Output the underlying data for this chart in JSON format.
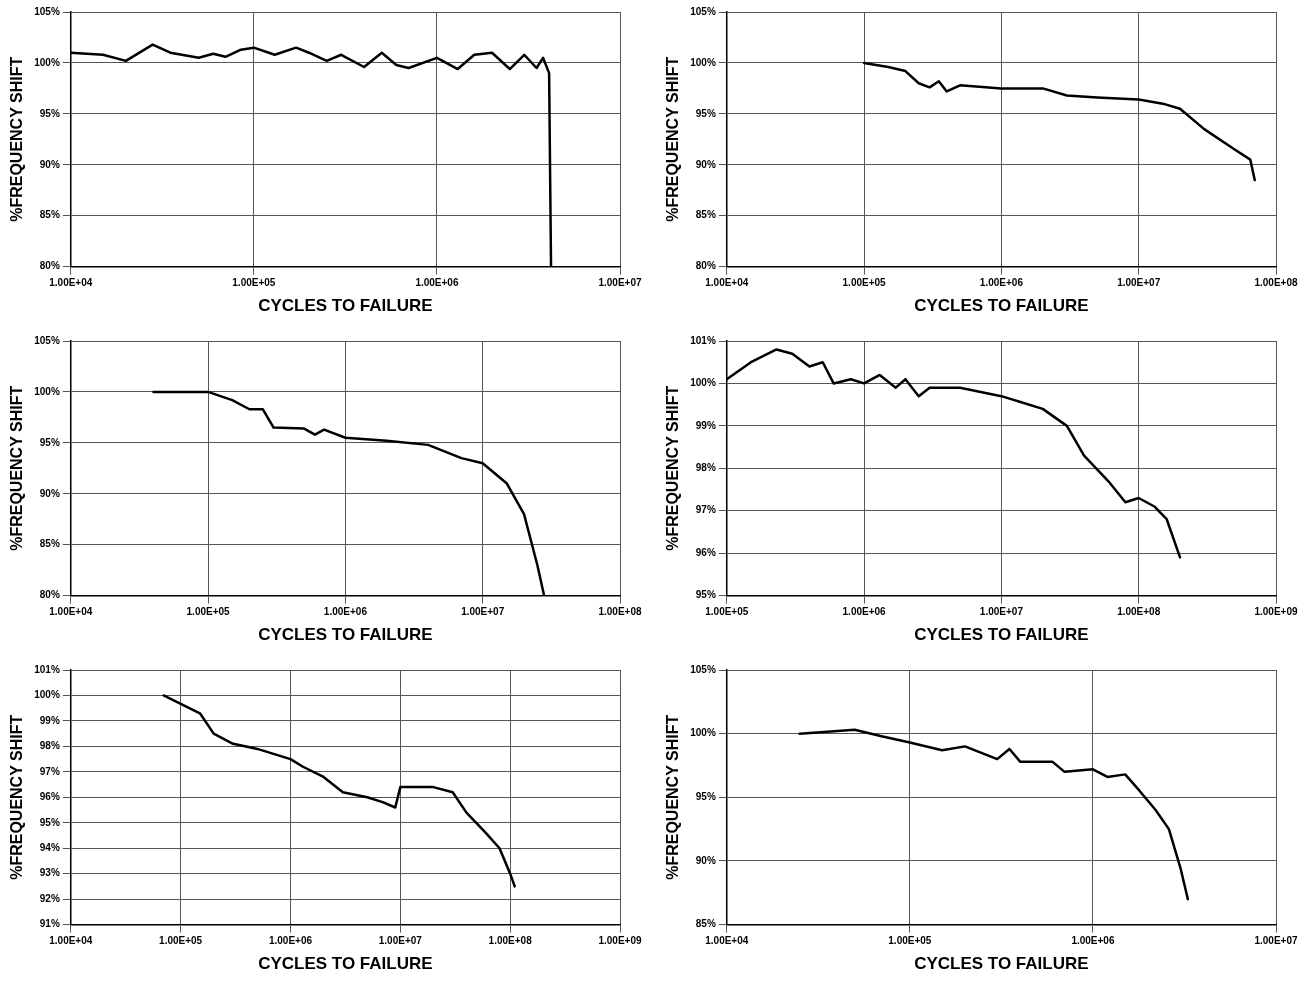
{
  "chart_data": [
    {
      "type": "line",
      "xlabel": "CYCLES TO FAILURE",
      "ylabel": "%FREQUENCY SHIFT",
      "log": "x",
      "grid": true,
      "marker": "none",
      "line_style": "solid",
      "color": "#000000",
      "x": [
        10000,
        15000,
        20000,
        28000,
        35000,
        50000,
        60000,
        70000,
        85000,
        100000,
        130000,
        170000,
        200000,
        250000,
        300000,
        400000,
        500000,
        600000,
        700000,
        1000000,
        1300000,
        1600000,
        2000000,
        2500000,
        3000000,
        3500000,
        3800000,
        4100000,
        4200000
      ],
      "values": [
        101,
        100.8,
        100.2,
        101.8,
        101,
        100.5,
        100.9,
        100.6,
        101.3,
        101.5,
        100.8,
        101.5,
        101,
        100.2,
        100.8,
        99.6,
        101,
        99.8,
        99.5,
        100.5,
        99.4,
        100.8,
        101,
        99.4,
        100.8,
        99.5,
        100.5,
        99,
        80
      ],
      "xlim": [
        10000,
        10000000
      ],
      "xticks": [
        {
          "value": 10000,
          "label": "1.00E+04"
        },
        {
          "value": 100000,
          "label": "1.00E+05"
        },
        {
          "value": 1000000,
          "label": "1.00E+06"
        },
        {
          "value": 10000000,
          "label": "1.00E+07"
        }
      ],
      "ylim": [
        80,
        105
      ],
      "yticks": [
        {
          "value": 80,
          "label": "80%"
        },
        {
          "value": 85,
          "label": "85%"
        },
        {
          "value": 90,
          "label": "90%"
        },
        {
          "value": 95,
          "label": "95%"
        },
        {
          "value": 100,
          "label": "100%"
        },
        {
          "value": 105,
          "label": "105%"
        }
      ]
    },
    {
      "type": "line",
      "xlabel": "CYCLES TO FAILURE",
      "ylabel": "%FREQUENCY SHIFT",
      "log": "x",
      "grid": true,
      "marker": "none",
      "line_style": "solid",
      "color": "#000000",
      "x": [
        100000,
        150000,
        200000,
        250000,
        300000,
        350000,
        400000,
        500000,
        1000000,
        2000000,
        3000000,
        5000000,
        10000000,
        15000000,
        20000000,
        30000000,
        50000000,
        65000000,
        70000000
      ],
      "values": [
        100,
        99.6,
        99.2,
        98,
        97.6,
        98.2,
        97.2,
        97.8,
        97.5,
        97.5,
        96.8,
        96.6,
        96.4,
        96,
        95.5,
        93.5,
        91.5,
        90.5,
        88.5
      ],
      "xlim": [
        10000,
        100000000
      ],
      "xticks": [
        {
          "value": 10000,
          "label": "1.00E+04"
        },
        {
          "value": 100000,
          "label": "1.00E+05"
        },
        {
          "value": 1000000,
          "label": "1.00E+06"
        },
        {
          "value": 10000000,
          "label": "1.00E+07"
        },
        {
          "value": 100000000,
          "label": "1.00E+08"
        }
      ],
      "ylim": [
        80,
        105
      ],
      "yticks": [
        {
          "value": 80,
          "label": "80%"
        },
        {
          "value": 85,
          "label": "85%"
        },
        {
          "value": 90,
          "label": "90%"
        },
        {
          "value": 95,
          "label": "95%"
        },
        {
          "value": 100,
          "label": "100%"
        },
        {
          "value": 105,
          "label": "105%"
        }
      ]
    },
    {
      "type": "line",
      "xlabel": "CYCLES TO FAILURE",
      "ylabel": "%FREQUENCY SHIFT",
      "log": "x",
      "grid": true,
      "marker": "none",
      "line_style": "solid",
      "color": "#000000",
      "x": [
        40000,
        100000,
        150000,
        200000,
        250000,
        300000,
        500000,
        600000,
        700000,
        1000000,
        2000000,
        4000000,
        7000000,
        10000000,
        15000000,
        20000000,
        25000000,
        28000000
      ],
      "values": [
        100,
        100,
        99.2,
        98.3,
        98.3,
        96.5,
        96.4,
        95.8,
        96.3,
        95.5,
        95.2,
        94.8,
        93.5,
        93,
        91,
        88,
        83,
        80
      ],
      "xlim": [
        10000,
        100000000
      ],
      "xticks": [
        {
          "value": 10000,
          "label": "1.00E+04"
        },
        {
          "value": 100000,
          "label": "1.00E+05"
        },
        {
          "value": 1000000,
          "label": "1.00E+06"
        },
        {
          "value": 10000000,
          "label": "1.00E+07"
        },
        {
          "value": 100000000,
          "label": "1.00E+08"
        }
      ],
      "ylim": [
        80,
        105
      ],
      "yticks": [
        {
          "value": 80,
          "label": "80%"
        },
        {
          "value": 85,
          "label": "85%"
        },
        {
          "value": 90,
          "label": "90%"
        },
        {
          "value": 95,
          "label": "95%"
        },
        {
          "value": 100,
          "label": "100%"
        },
        {
          "value": 105,
          "label": "105%"
        }
      ]
    },
    {
      "type": "line",
      "xlabel": "CYCLES TO FAILURE",
      "ylabel": "%FREQUENCY SHIFT",
      "log": "x",
      "grid": true,
      "marker": "none",
      "line_style": "solid",
      "color": "#000000",
      "x": [
        100000,
        150000,
        230000,
        300000,
        400000,
        500000,
        600000,
        800000,
        1000000,
        1300000,
        1700000,
        2000000,
        2500000,
        3000000,
        5000000,
        10000000,
        20000000,
        30000000,
        40000000,
        60000000,
        80000000,
        100000000,
        130000000,
        160000000,
        200000000
      ],
      "values": [
        100.1,
        100.5,
        100.8,
        100.7,
        100.4,
        100.5,
        100,
        100.1,
        100,
        100.2,
        99.9,
        100.1,
        99.7,
        99.9,
        99.9,
        99.7,
        99.4,
        99,
        98.3,
        97.7,
        97.2,
        97.3,
        97.1,
        96.8,
        95.9
      ],
      "xlim": [
        100000,
        1000000000
      ],
      "xticks": [
        {
          "value": 100000,
          "label": "1.00E+05"
        },
        {
          "value": 1000000,
          "label": "1.00E+06"
        },
        {
          "value": 10000000,
          "label": "1.00E+07"
        },
        {
          "value": 100000000,
          "label": "1.00E+08"
        },
        {
          "value": 1000000000,
          "label": "1.00E+09"
        }
      ],
      "ylim": [
        95,
        101
      ],
      "yticks": [
        {
          "value": 95,
          "label": "95%"
        },
        {
          "value": 96,
          "label": "96%"
        },
        {
          "value": 97,
          "label": "97%"
        },
        {
          "value": 98,
          "label": "98%"
        },
        {
          "value": 99,
          "label": "99%"
        },
        {
          "value": 100,
          "label": "100%"
        },
        {
          "value": 101,
          "label": "101%"
        }
      ]
    },
    {
      "type": "line",
      "xlabel": "CYCLES TO FAILURE",
      "ylabel": "%FREQUENCY SHIFT",
      "log": "x",
      "grid": true,
      "marker": "none",
      "line_style": "solid",
      "color": "#000000",
      "x": [
        70000,
        150000,
        200000,
        300000,
        500000,
        1000000,
        1300000,
        2000000,
        3000000,
        5000000,
        7000000,
        9000000,
        10000000,
        20000000,
        30000000,
        40000000,
        60000000,
        80000000,
        100000000,
        110000000
      ],
      "values": [
        100,
        99.3,
        98.5,
        98.1,
        97.9,
        97.5,
        97.2,
        96.8,
        96.2,
        96,
        95.8,
        95.6,
        96.4,
        96.4,
        96.2,
        95.4,
        94.6,
        94,
        93,
        92.5
      ],
      "xlim": [
        10000,
        1000000000
      ],
      "xticks": [
        {
          "value": 10000,
          "label": "1.00E+04"
        },
        {
          "value": 100000,
          "label": "1.00E+05"
        },
        {
          "value": 1000000,
          "label": "1.00E+06"
        },
        {
          "value": 10000000,
          "label": "1.00E+07"
        },
        {
          "value": 100000000,
          "label": "1.00E+08"
        },
        {
          "value": 1000000000,
          "label": "1.00E+09"
        }
      ],
      "ylim": [
        91,
        101
      ],
      "yticks": [
        {
          "value": 91,
          "label": "91%"
        },
        {
          "value": 92,
          "label": "92%"
        },
        {
          "value": 93,
          "label": "93%"
        },
        {
          "value": 94,
          "label": "94%"
        },
        {
          "value": 95,
          "label": "95%"
        },
        {
          "value": 96,
          "label": "96%"
        },
        {
          "value": 97,
          "label": "97%"
        },
        {
          "value": 98,
          "label": "98%"
        },
        {
          "value": 99,
          "label": "99%"
        },
        {
          "value": 100,
          "label": "100%"
        },
        {
          "value": 101,
          "label": "101%"
        }
      ]
    },
    {
      "type": "line",
      "xlabel": "CYCLES TO FAILURE",
      "ylabel": "%FREQUENCY SHIFT",
      "log": "x",
      "grid": true,
      "marker": "none",
      "line_style": "solid",
      "color": "#000000",
      "x": [
        25000,
        50000,
        70000,
        100000,
        150000,
        200000,
        300000,
        350000,
        400000,
        600000,
        700000,
        1000000,
        1200000,
        1500000,
        1800000,
        2200000,
        2600000,
        3000000,
        3300000
      ],
      "values": [
        100,
        100.3,
        99.8,
        99.3,
        98.7,
        99,
        98,
        98.8,
        97.8,
        97.8,
        97,
        97.2,
        96.6,
        96.8,
        95.5,
        94,
        92.5,
        89.5,
        87
      ],
      "xlim": [
        10000,
        10000000
      ],
      "xticks": [
        {
          "value": 10000,
          "label": "1.00E+04"
        },
        {
          "value": 100000,
          "label": "1.00E+05"
        },
        {
          "value": 1000000,
          "label": "1.00E+06"
        },
        {
          "value": 10000000,
          "label": "1.00E+07"
        }
      ],
      "ylim": [
        85,
        105
      ],
      "yticks": [
        {
          "value": 85,
          "label": "85%"
        },
        {
          "value": 90,
          "label": "90%"
        },
        {
          "value": 95,
          "label": "95%"
        },
        {
          "value": 100,
          "label": "100%"
        },
        {
          "value": 105,
          "label": "105%"
        }
      ]
    }
  ]
}
